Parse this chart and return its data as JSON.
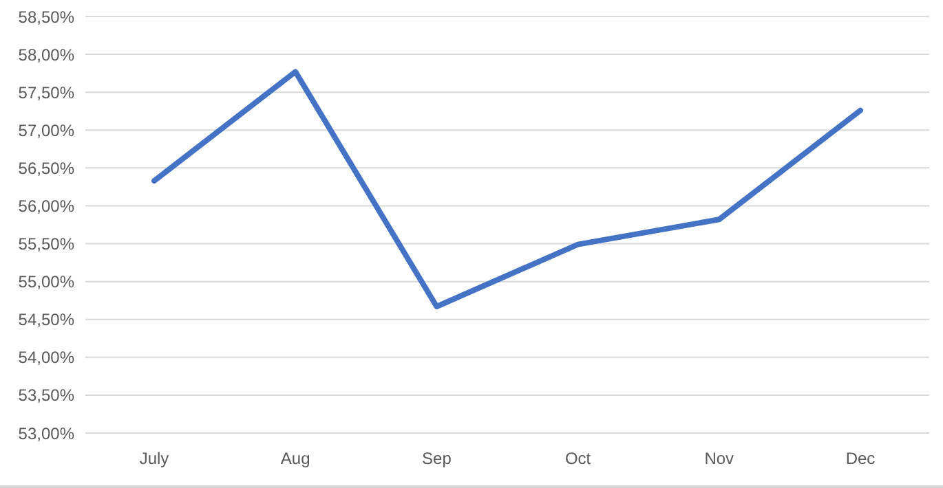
{
  "chart_data": {
    "type": "line",
    "categories": [
      "July",
      "Aug",
      "Sep",
      "Oct",
      "Nov",
      "Dec"
    ],
    "series": [
      {
        "color": "#4472c4",
        "values": [
          56.33,
          57.77,
          54.67,
          55.49,
          55.82,
          57.26
        ]
      }
    ],
    "ylim": [
      53,
      58.5
    ],
    "yticks": [
      {
        "value": 53,
        "label": "53,00%"
      },
      {
        "value": 53.5,
        "label": "53,50%"
      },
      {
        "value": 54,
        "label": "54,00%"
      },
      {
        "value": 54.5,
        "label": "54,50%"
      },
      {
        "value": 55,
        "label": "55,00%"
      },
      {
        "value": 55.5,
        "label": "55,50%"
      },
      {
        "value": 56,
        "label": "56,00%"
      },
      {
        "value": 56.5,
        "label": "56,50%"
      },
      {
        "value": 57,
        "label": "57,00%"
      },
      {
        "value": 57.5,
        "label": "57,50%"
      },
      {
        "value": 58,
        "label": "58,00%"
      },
      {
        "value": 58.5,
        "label": "58,50%"
      }
    ],
    "grid": "y",
    "legend": false,
    "marker": "none",
    "line_style": "solid"
  }
}
